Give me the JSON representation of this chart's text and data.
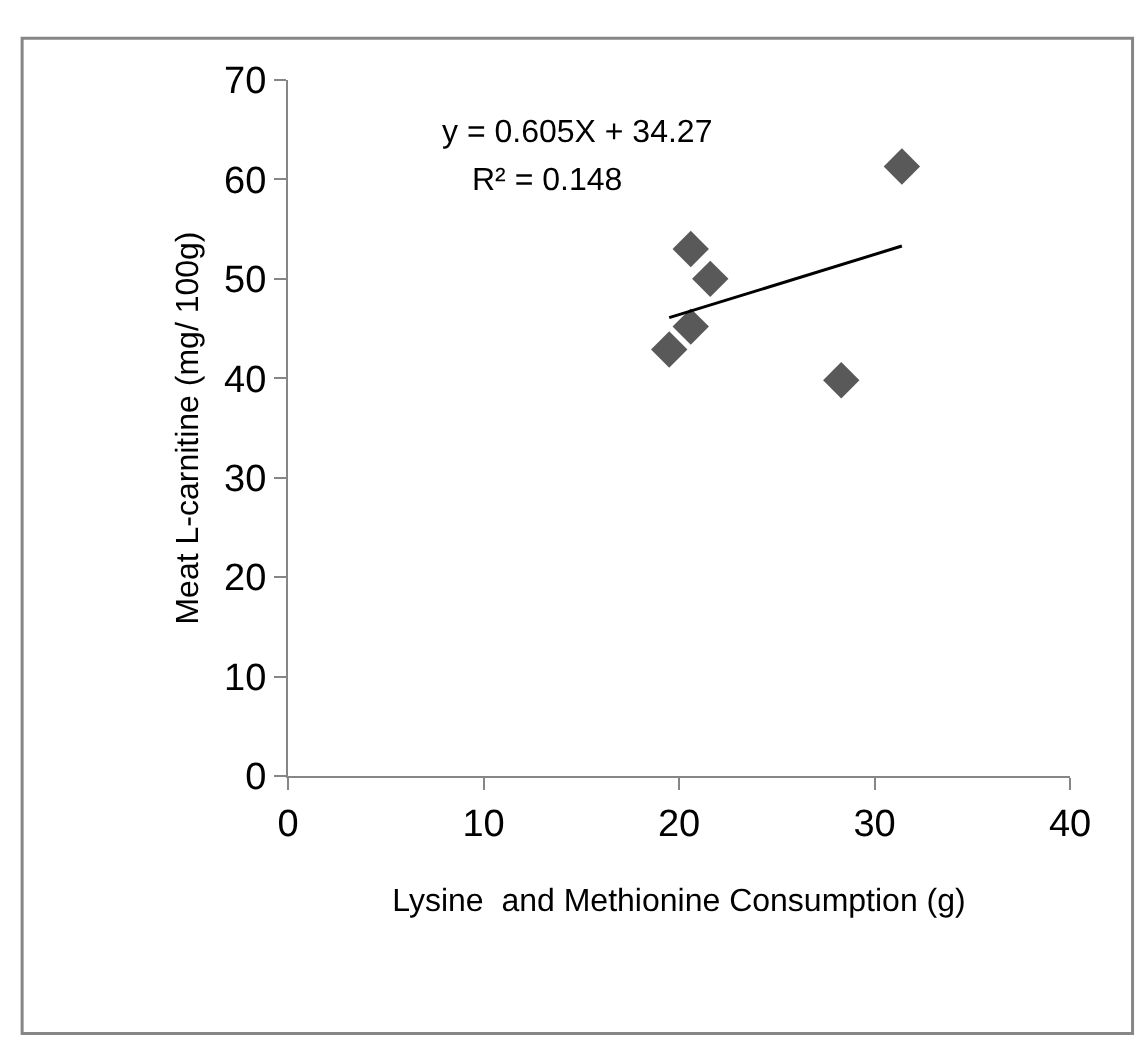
{
  "chart_data": {
    "type": "scatter",
    "xlabel": "Lysine  and Methionine Consumption (g)",
    "ylabel": "Meat L-carnitine (mg/ 100g)",
    "annotations": [
      "y = 0.605X + 34.27",
      "R² = 0.148"
    ],
    "series": [
      {
        "color": "#595959",
        "marker": "diamond",
        "x": [
          19.5,
          20.6,
          20.6,
          21.6,
          28.3,
          31.4
        ],
        "values": [
          42.9,
          45.2,
          53.0,
          50.0,
          39.8,
          61.3
        ]
      },
      {
        "type": "line",
        "color": "#000000",
        "marker": "none",
        "line_style": "solid",
        "x": [
          19.5,
          31.4
        ],
        "values": [
          46.1,
          53.3
        ]
      }
    ],
    "xlim": [
      0,
      40
    ],
    "xticks": [
      0,
      10,
      20,
      30,
      40
    ],
    "ylim": [
      0,
      70
    ],
    "yticks": [
      0,
      10,
      20,
      30,
      40,
      50,
      60,
      70
    ]
  }
}
